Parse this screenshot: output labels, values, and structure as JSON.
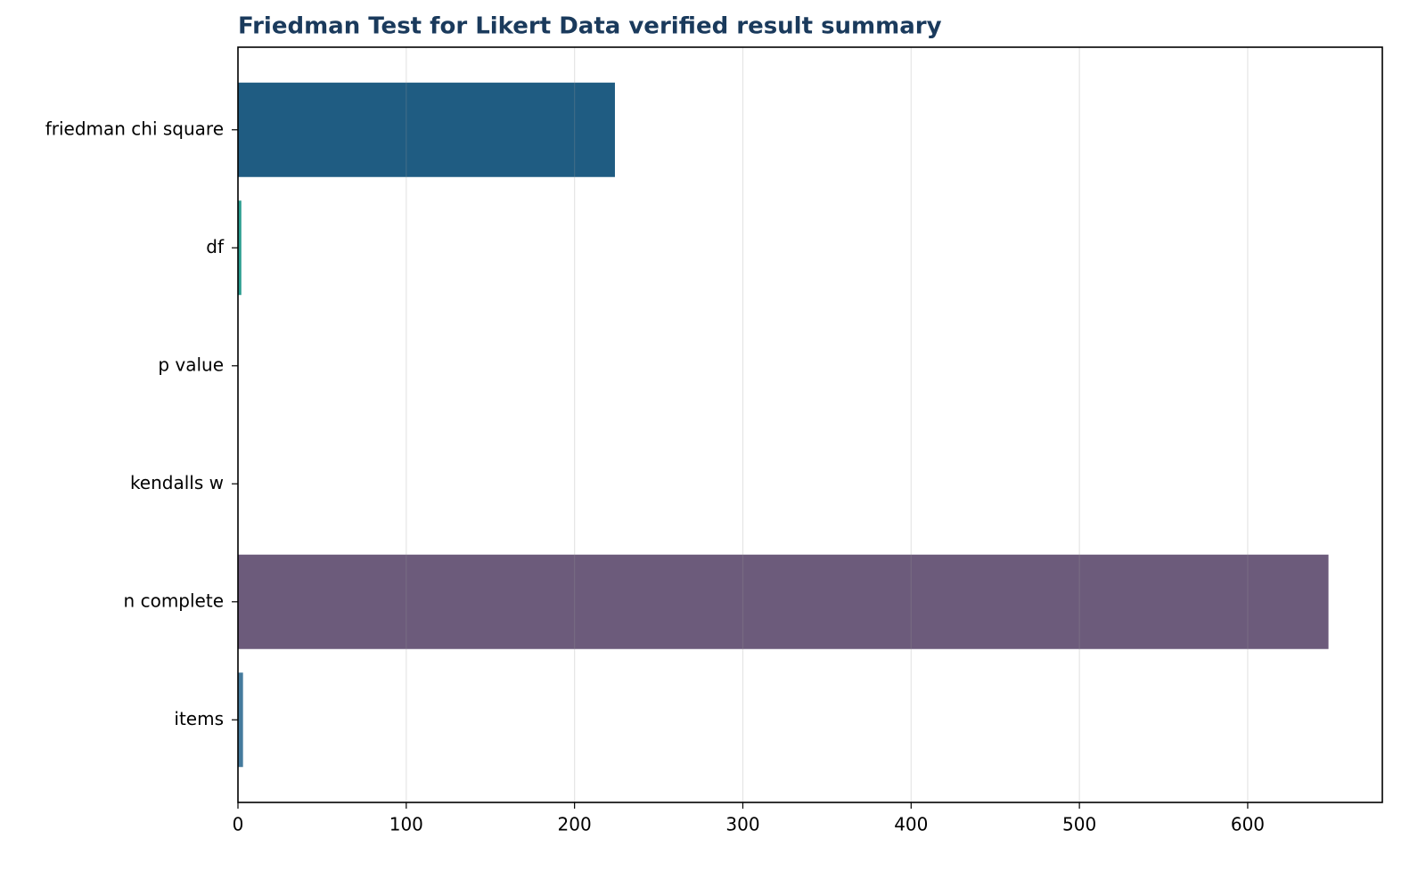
{
  "chart_data": {
    "type": "barh",
    "title": "Friedman Test for Likert Data verified result summary",
    "categories": [
      "friedman chi square",
      "df",
      "p value",
      "kendalls w",
      "n complete",
      "items"
    ],
    "values": [
      224,
      2,
      0,
      0.2,
      648,
      3
    ],
    "colors": [
      "#1f5c82",
      "#2a9d8f",
      "#e9c46a",
      "#f4a261",
      "#6c5b7b",
      "#457b9d"
    ],
    "xlim": [
      0,
      680
    ],
    "xticks": [
      0,
      100,
      200,
      300,
      400,
      500,
      600
    ],
    "grid": true
  }
}
